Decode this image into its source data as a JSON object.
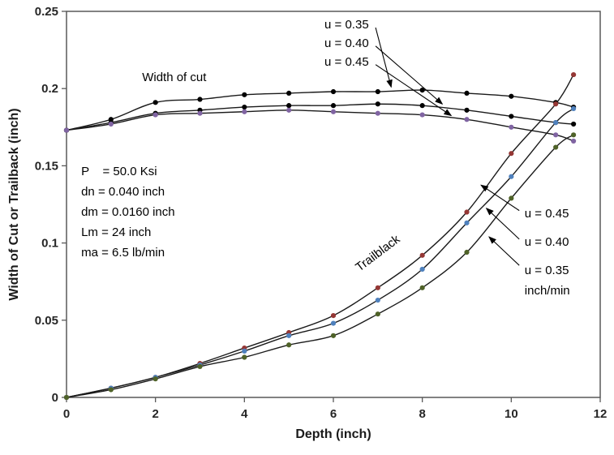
{
  "chart_data": {
    "type": "line",
    "title": "",
    "xlabel": "Depth (inch)",
    "ylabel": "Width of Cut or Trailback (inch)",
    "xlim": [
      0,
      12
    ],
    "ylim": [
      0,
      0.25
    ],
    "grid": false,
    "legend": "none",
    "frame_color": "#595959",
    "line_color": "#1a1a1a",
    "tick_label_color": "#262626",
    "xticks": {
      "values": [
        0,
        2,
        4,
        6,
        8,
        10,
        12
      ],
      "labels": [
        "0",
        "2",
        "4",
        "6",
        "8",
        "10",
        "12"
      ]
    },
    "yticks": {
      "values": [
        0,
        0.05,
        0.1,
        0.15,
        0.2,
        0.25
      ],
      "labels": [
        "0",
        "0.05",
        "0.1",
        "0.15",
        "0.2",
        "0.25"
      ]
    },
    "x": [
      0,
      1,
      2,
      3,
      4,
      5,
      6,
      7,
      8,
      9,
      10,
      11,
      11.4
    ],
    "series": [
      {
        "name": "width-of-cut-u-0.35",
        "group": "width of cut",
        "u": "0.35",
        "marker_color": "#000000",
        "values": [
          0.173,
          0.18,
          0.191,
          0.193,
          0.196,
          0.197,
          0.198,
          0.198,
          0.199,
          0.197,
          0.195,
          0.191,
          0.188
        ]
      },
      {
        "name": "width-of-cut-u-0.40",
        "group": "width of cut",
        "u": "0.40",
        "marker_color": "#000000",
        "values": [
          0.173,
          0.178,
          0.184,
          0.186,
          0.188,
          0.189,
          0.189,
          0.19,
          0.189,
          0.186,
          0.182,
          0.178,
          0.177
        ]
      },
      {
        "name": "width-of-cut-u-0.45",
        "group": "width of cut",
        "u": "0.45",
        "marker_color": "#8064a2",
        "values": [
          0.173,
          0.177,
          0.183,
          0.184,
          0.185,
          0.186,
          0.185,
          0.184,
          0.183,
          0.18,
          0.175,
          0.17,
          0.166
        ]
      },
      {
        "name": "trailback-u-0.45",
        "group": "trailback",
        "u": "0.45",
        "marker_color": "#953735",
        "values": [
          0.0,
          0.006,
          0.013,
          0.022,
          0.032,
          0.042,
          0.053,
          0.071,
          0.092,
          0.12,
          0.158,
          0.19,
          0.209
        ]
      },
      {
        "name": "trailback-u-0.40",
        "group": "trailback",
        "u": "0.40",
        "marker_color": "#4f81bd",
        "values": [
          0.0,
          0.006,
          0.013,
          0.021,
          0.03,
          0.04,
          0.048,
          0.063,
          0.083,
          0.113,
          0.143,
          0.178,
          0.187
        ]
      },
      {
        "name": "trailback-u-0.35",
        "group": "trailback",
        "u": "0.35",
        "marker_color": "#4f6228",
        "values": [
          0.0,
          0.005,
          0.012,
          0.02,
          0.026,
          0.034,
          0.04,
          0.054,
          0.071,
          0.094,
          0.129,
          0.162,
          0.17
        ]
      }
    ],
    "annotations": {
      "curve_labels": [
        {
          "name": "width-of-cut-label",
          "text": "Width of cut",
          "x": 1.7,
          "y": 0.2075,
          "rotate": 0,
          "anchor": "start"
        },
        {
          "name": "trailback-label",
          "text": "Trailblack",
          "x": 7.05,
          "y": 0.094,
          "rotate": -37,
          "anchor": "middle"
        }
      ],
      "params_block": {
        "x": 0.33,
        "y_start": 0.1465,
        "line_step": 0.01315,
        "lines": [
          "P    = 50.0 Ksi",
          "dn = 0.040 inch",
          "dm = 0.0160 inch",
          "Lm = 24 inch",
          "ma = 6.5 lb/min"
        ]
      },
      "pointer_labels": [
        {
          "name": "label-width-u-0.35",
          "lines": [
            "u = 0.35"
          ],
          "x": 5.8,
          "y": 0.2416,
          "arrow": {
            "x1": 6.95,
            "y1": 0.2395,
            "x2": 7.3,
            "y2": 0.201
          }
        },
        {
          "name": "label-width-u-0.40",
          "lines": [
            "u = 0.40"
          ],
          "x": 5.8,
          "y": 0.2295,
          "arrow": {
            "x1": 6.95,
            "y1": 0.2275,
            "x2": 8.45,
            "y2": 0.19
          }
        },
        {
          "name": "label-width-u-0.45",
          "lines": [
            "u = 0.45"
          ],
          "x": 5.8,
          "y": 0.2174,
          "arrow": {
            "x1": 6.95,
            "y1": 0.2155,
            "x2": 8.65,
            "y2": 0.1825
          }
        },
        {
          "name": "label-trail-u-0.45",
          "lines": [
            "u = 0.45"
          ],
          "x": 10.3,
          "y": 0.1192,
          "arrow": {
            "x1": 10.18,
            "y1": 0.121,
            "x2": 9.32,
            "y2": 0.1375
          }
        },
        {
          "name": "label-trail-u-0.40",
          "lines": [
            "u = 0.40"
          ],
          "x": 10.3,
          "y": 0.1008,
          "arrow": {
            "x1": 10.18,
            "y1": 0.1025,
            "x2": 9.44,
            "y2": 0.1225
          }
        },
        {
          "name": "label-trail-u-0.35",
          "lines": [
            "u = 0.35",
            "inch/min"
          ],
          "x": 10.3,
          "y": 0.0825,
          "arrow": {
            "x1": 10.18,
            "y1": 0.0855,
            "x2": 9.5,
            "y2": 0.104
          }
        }
      ]
    }
  }
}
